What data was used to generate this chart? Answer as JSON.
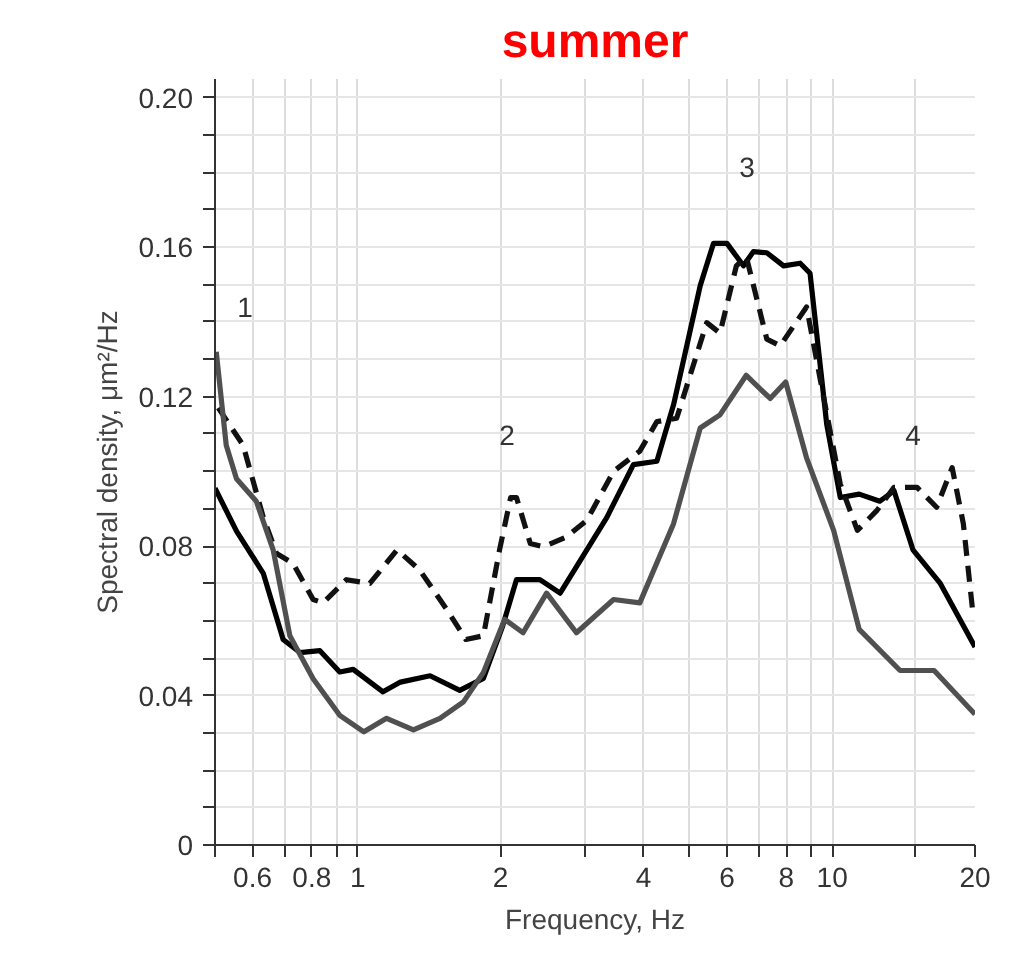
{
  "chart_data": {
    "type": "line",
    "title": "summer",
    "xlabel": "Frequency, Hz",
    "ylabel": "Spectral density, μm²/Hz",
    "log": "x",
    "grid": true,
    "xlim": [
      0.5,
      20
    ],
    "ylim": [
      0,
      0.205
    ],
    "xticks": [
      {
        "value": 0.5,
        "label": null
      },
      0.6,
      {
        "value": 0.7,
        "label": null
      },
      0.8,
      {
        "value": 0.9,
        "label": null
      },
      1,
      2,
      {
        "value": 3,
        "label": null
      },
      4,
      {
        "value": 5,
        "label": null
      },
      6,
      {
        "value": 7,
        "label": null
      },
      8,
      {
        "value": 9,
        "label": null
      },
      10,
      {
        "value": 15,
        "label": null
      },
      20
    ],
    "yticks": [
      0,
      {
        "value": 0.01,
        "label": null
      },
      {
        "value": 0.02,
        "label": null
      },
      {
        "value": 0.03,
        "label": null
      },
      0.04,
      {
        "value": 0.05,
        "label": null
      },
      {
        "value": 0.06,
        "label": null
      },
      {
        "value": 0.07,
        "label": null
      },
      0.08,
      {
        "value": 0.09,
        "label": null
      },
      {
        "value": 0.1,
        "label": null
      },
      {
        "value": 0.11,
        "label": null
      },
      0.12,
      {
        "value": 0.13,
        "label": null
      },
      {
        "value": 0.14,
        "label": null
      },
      {
        "value": 0.15,
        "label": null
      },
      0.16,
      {
        "value": 0.17,
        "label": null
      },
      {
        "value": 0.18,
        "label": null
      },
      {
        "value": 0.19,
        "label": null
      },
      {
        "value": 0.2,
        "label": "0.20"
      }
    ],
    "series": [
      {
        "color": "#000000",
        "line_style": "solid",
        "x": [
          0.5,
          0.555,
          0.632,
          0.696,
          0.755,
          0.832,
          0.916,
          0.978,
          1.13,
          1.23,
          1.42,
          1.64,
          1.84,
          2.02,
          2.16,
          2.42,
          2.67,
          3.35,
          3.81,
          4.27,
          4.63,
          5.27,
          5.62,
          6.0,
          6.5,
          6.82,
          7.28,
          7.9,
          8.56,
          8.98,
          9.74,
          10.4,
          11.4,
          12.6,
          13.5,
          14.8,
          16.9,
          20
        ],
        "values": [
          0.0955,
          0.084,
          0.0727,
          0.055,
          0.0515,
          0.052,
          0.0463,
          0.047,
          0.041,
          0.0436,
          0.0453,
          0.0414,
          0.0446,
          0.0586,
          0.071,
          0.071,
          0.0674,
          0.0877,
          0.1018,
          0.1027,
          0.1178,
          0.1497,
          0.161,
          0.161,
          0.155,
          0.1588,
          0.1585,
          0.155,
          0.1557,
          0.153,
          0.1125,
          0.093,
          0.0939,
          0.092,
          0.0948,
          0.079,
          0.07,
          0.053
        ]
      },
      {
        "color": "#111111",
        "line_style": "dashed",
        "x": [
          0.508,
          0.573,
          0.632,
          0.674,
          0.73,
          0.805,
          0.845,
          0.946,
          1.06,
          1.21,
          1.35,
          1.54,
          1.69,
          1.84,
          1.99,
          2.1,
          2.16,
          2.31,
          2.46,
          2.75,
          3.04,
          3.46,
          3.93,
          4.27,
          4.7,
          5.44,
          5.8,
          6.28,
          6.59,
          7.28,
          7.77,
          8.83,
          9.43,
          10.4,
          11.3,
          12.4,
          13.5,
          15.1,
          16.6,
          17.9,
          18.9,
          19.8
        ],
        "values": [
          0.117,
          0.107,
          0.0877,
          0.078,
          0.0754,
          0.0657,
          0.0648,
          0.071,
          0.07,
          0.079,
          0.0736,
          0.063,
          0.055,
          0.056,
          0.079,
          0.093,
          0.093,
          0.0807,
          0.0798,
          0.0824,
          0.0869,
          0.1,
          0.1054,
          0.1133,
          0.1142,
          0.1398,
          0.137,
          0.155,
          0.1575,
          0.1354,
          0.1336,
          0.144,
          0.1248,
          0.0966,
          0.0842,
          0.0894,
          0.0957,
          0.0957,
          0.0904,
          0.101,
          0.086,
          0.062
        ]
      },
      {
        "color": "#505050",
        "line_style": "solid",
        "x": [
          0.503,
          0.528,
          0.555,
          0.611,
          0.663,
          0.719,
          0.805,
          0.916,
          1.03,
          1.15,
          1.31,
          1.49,
          1.67,
          1.84,
          2.04,
          2.23,
          2.5,
          2.89,
          3.46,
          3.93,
          4.63,
          5.27,
          5.8,
          6.59,
          7.4,
          7.98,
          8.83,
          10.07,
          11.4,
          13.9,
          16.4,
          20
        ],
        "values": [
          0.132,
          0.107,
          0.098,
          0.092,
          0.079,
          0.056,
          0.0445,
          0.0347,
          0.0303,
          0.0339,
          0.0308,
          0.0339,
          0.0383,
          0.0462,
          0.0604,
          0.0568,
          0.0674,
          0.0568,
          0.0657,
          0.0648,
          0.086,
          0.1116,
          0.1151,
          0.1257,
          0.1195,
          0.1239,
          0.1036,
          0.0842,
          0.0577,
          0.0467,
          0.0467,
          0.035
        ]
      }
    ],
    "annotations": [
      "1",
      "2",
      "3",
      "4"
    ]
  }
}
